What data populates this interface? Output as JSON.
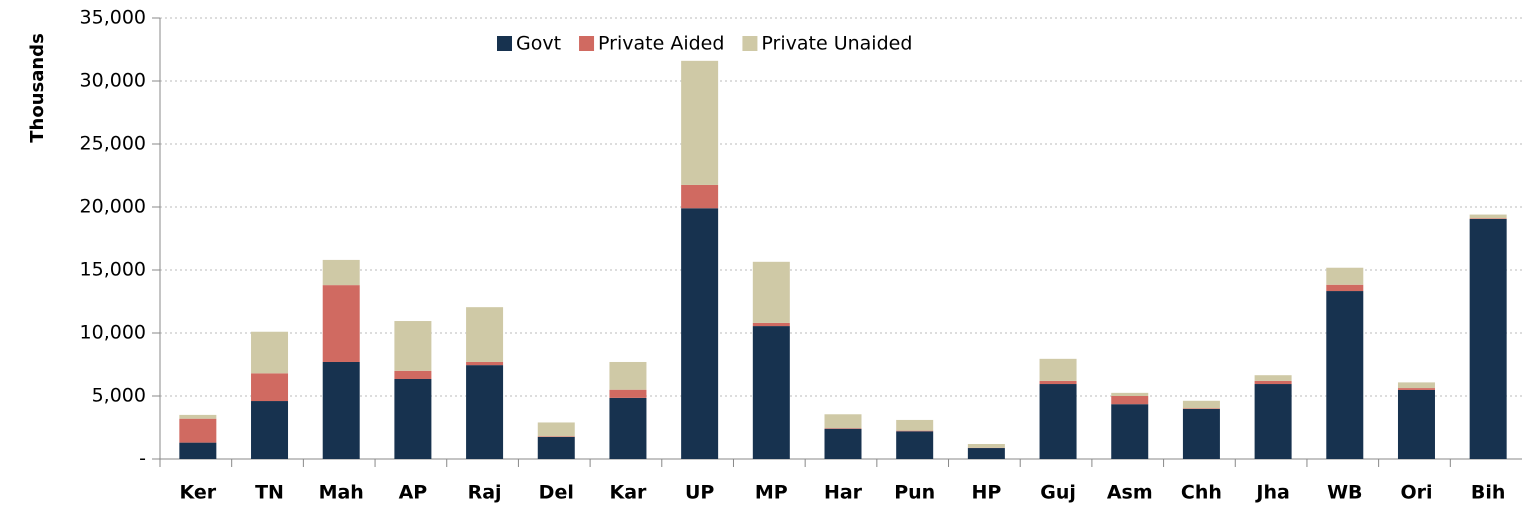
{
  "chart_data": {
    "type": "stacked_bar",
    "y_label": "Thousands",
    "categories": [
      "Ker",
      "TN",
      "Mah",
      "AP",
      "Raj",
      "Del",
      "Kar",
      "UP",
      "MP",
      "Har",
      "Pun",
      "HP",
      "Guj",
      "Asm",
      "Chh",
      "Jha",
      "WB",
      "Ori",
      "Bih"
    ],
    "series": [
      {
        "name": "Govt",
        "color": "#17324f",
        "values": [
          1300,
          4600,
          7700,
          6350,
          7450,
          1750,
          4850,
          19900,
          10550,
          2400,
          2200,
          870,
          5950,
          4350,
          3970,
          5950,
          13330,
          5480,
          19050
        ]
      },
      {
        "name": "Private Aided",
        "color": "#d06a61",
        "values": [
          1900,
          2200,
          6100,
          650,
          250,
          50,
          650,
          1850,
          250,
          50,
          50,
          20,
          250,
          650,
          50,
          250,
          500,
          150,
          50
        ]
      },
      {
        "name": "Private Unaided",
        "color": "#cfc9a6",
        "values": [
          300,
          3300,
          2000,
          3950,
          4350,
          1100,
          2200,
          9850,
          4850,
          1100,
          850,
          300,
          1750,
          250,
          600,
          450,
          1350,
          450,
          300
        ]
      }
    ],
    "ylim": [
      0,
      35000
    ],
    "yticks": [
      {
        "value": 0,
        "label": "-"
      },
      {
        "value": 5000,
        "label": "5,000"
      },
      {
        "value": 10000,
        "label": "10,000"
      },
      {
        "value": 15000,
        "label": "15,000"
      },
      {
        "value": 20000,
        "label": "20,000"
      },
      {
        "value": 25000,
        "label": "25,000"
      },
      {
        "value": 30000,
        "label": "30,000"
      },
      {
        "value": 35000,
        "label": "35,000"
      }
    ],
    "grid": true,
    "legend": "top"
  }
}
